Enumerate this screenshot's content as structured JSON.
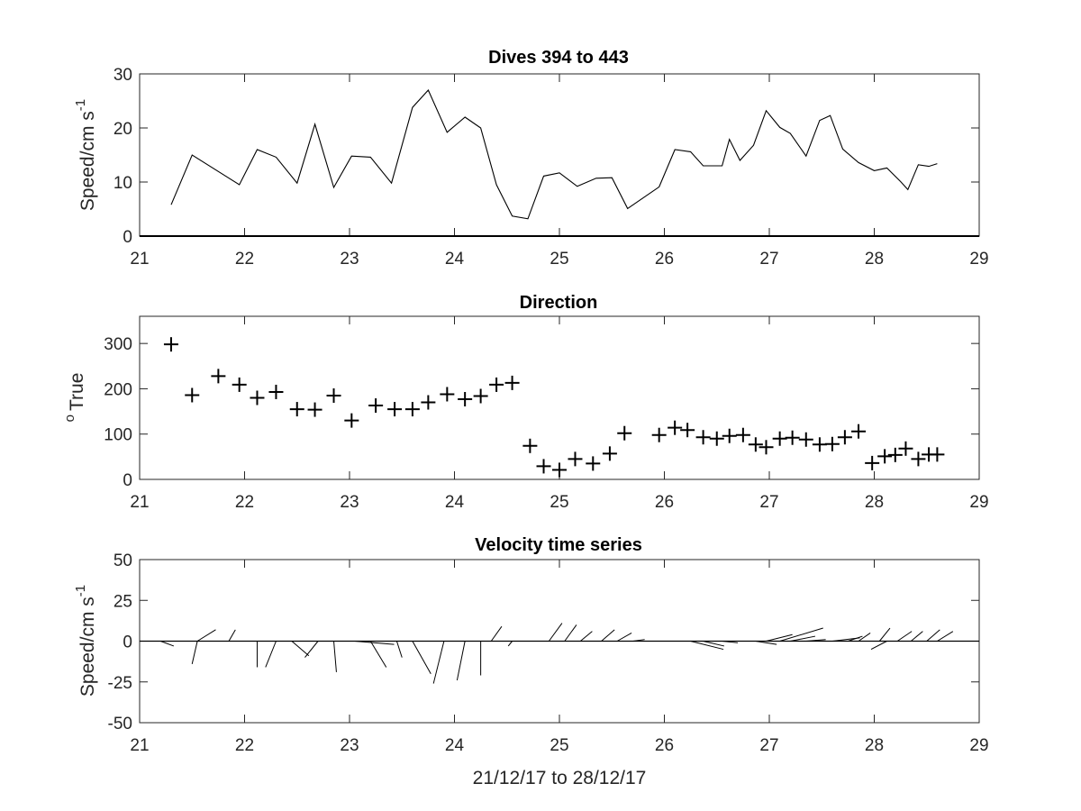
{
  "chart_data": [
    {
      "type": "line",
      "title": "Dives 394 to 443",
      "ylabel": "Speed/cm s",
      "ylabel_superscript": "-1",
      "xlim": [
        21,
        29
      ],
      "ylim": [
        0,
        30
      ],
      "xticks": [
        "21",
        "22",
        "23",
        "24",
        "25",
        "26",
        "27",
        "28",
        "29"
      ],
      "yticks": [
        "0",
        "10",
        "20",
        "30"
      ],
      "grid": false,
      "line_color": "#000000",
      "x": [
        21.3,
        21.5,
        21.95,
        22.12,
        22.3,
        22.5,
        22.67,
        22.85,
        23.02,
        23.2,
        23.4,
        23.6,
        23.75,
        23.93,
        24.1,
        24.25,
        24.4,
        24.55,
        24.7,
        24.85,
        25.0,
        25.17,
        25.35,
        25.5,
        25.65,
        25.95,
        26.1,
        26.25,
        26.37,
        26.55,
        26.62,
        26.72,
        26.85,
        26.97,
        27.1,
        27.2,
        27.35,
        27.48,
        27.58,
        27.7,
        27.85,
        28.0,
        28.12,
        28.25,
        28.32,
        28.42,
        28.52,
        28.6
      ],
      "y": [
        5.8,
        15,
        9.5,
        16,
        14.6,
        9.8,
        20.7,
        9,
        14.8,
        14.6,
        9.8,
        23.8,
        27,
        19.2,
        22,
        20,
        9.5,
        3.7,
        3.2,
        11.1,
        11.7,
        9.2,
        10.7,
        10.8,
        5.1,
        9.1,
        16,
        15.6,
        13,
        13,
        17.9,
        14,
        16.8,
        23.2,
        20.1,
        19,
        14.8,
        21.4,
        22.3,
        16.1,
        13.6,
        12.1,
        12.6,
        10.1,
        8.6,
        13.2,
        12.9,
        13.4
      ]
    },
    {
      "type": "scatter",
      "title": "Direction",
      "ylabel": "True",
      "ylabel_prefix": "o",
      "xlim": [
        21,
        29
      ],
      "ylim": [
        0,
        360
      ],
      "xticks": [
        "21",
        "22",
        "23",
        "24",
        "25",
        "26",
        "27",
        "28",
        "29"
      ],
      "yticks": [
        "0",
        "100",
        "200",
        "300"
      ],
      "grid": false,
      "marker": "+",
      "x": [
        21.3,
        21.5,
        21.75,
        21.95,
        22.12,
        22.3,
        22.5,
        22.67,
        22.85,
        23.02,
        23.25,
        23.43,
        23.6,
        23.75,
        23.93,
        24.1,
        24.25,
        24.4,
        24.55,
        24.72,
        24.85,
        25.0,
        25.15,
        25.32,
        25.48,
        25.62,
        25.95,
        26.1,
        26.22,
        26.37,
        26.5,
        26.62,
        26.75,
        26.87,
        26.97,
        27.1,
        27.22,
        27.35,
        27.48,
        27.6,
        27.72,
        27.85,
        27.98,
        28.1,
        28.2,
        28.3,
        28.42,
        28.52,
        28.6
      ],
      "y": [
        298,
        186,
        228,
        209,
        180,
        193,
        155,
        154,
        185,
        130,
        163,
        155,
        155,
        170,
        188,
        177,
        184,
        209,
        213,
        74,
        29,
        21,
        45,
        35,
        57,
        102,
        98,
        114,
        109,
        93,
        90,
        96,
        98,
        77,
        71,
        90,
        92,
        88,
        77,
        78,
        93,
        106,
        36,
        51,
        54,
        68,
        45,
        55,
        55
      ]
    },
    {
      "type": "line",
      "subtype": "quiver",
      "title": "Velocity time series",
      "ylabel": "Speed/cm s",
      "ylabel_superscript": "-1",
      "xlabel": "21/12/17 to 28/12/17",
      "xlim": [
        21,
        29
      ],
      "ylim": [
        -50,
        50
      ],
      "xticks": [
        "21",
        "22",
        "23",
        "24",
        "25",
        "26",
        "27",
        "28",
        "29"
      ],
      "yticks": [
        "-50",
        "-25",
        "0",
        "25",
        "50"
      ],
      "grid": false,
      "baseline_y": 0,
      "x_days_per_cm_s": 0.0125,
      "vectors": [
        {
          "t": 21.2,
          "u": 10,
          "v": -3
        },
        {
          "t": 21.55,
          "u": -4,
          "v": -14
        },
        {
          "t": 21.55,
          "u": 14,
          "v": 7
        },
        {
          "t": 21.85,
          "u": 5,
          "v": 7
        },
        {
          "t": 22.12,
          "u": 0,
          "v": -16
        },
        {
          "t": 22.3,
          "u": -8,
          "v": -16
        },
        {
          "t": 22.45,
          "u": 13,
          "v": -9
        },
        {
          "t": 22.7,
          "u": -10,
          "v": -10
        },
        {
          "t": 22.85,
          "u": 2,
          "v": -19
        },
        {
          "t": 23.05,
          "u": 30,
          "v": -2
        },
        {
          "t": 23.2,
          "u": 12,
          "v": -16
        },
        {
          "t": 23.45,
          "u": 4,
          "v": -10
        },
        {
          "t": 23.6,
          "u": 14,
          "v": -20
        },
        {
          "t": 23.9,
          "u": -8,
          "v": -26
        },
        {
          "t": 24.1,
          "u": -6,
          "v": -24
        },
        {
          "t": 24.25,
          "u": 0,
          "v": -21
        },
        {
          "t": 24.35,
          "u": 8,
          "v": 9
        },
        {
          "t": 24.55,
          "u": -3,
          "v": -3
        },
        {
          "t": 24.9,
          "u": 10,
          "v": 11
        },
        {
          "t": 25.05,
          "u": 9,
          "v": 10
        },
        {
          "t": 25.2,
          "u": 9,
          "v": 6
        },
        {
          "t": 25.4,
          "u": 10,
          "v": 7
        },
        {
          "t": 25.55,
          "u": 11,
          "v": 5
        },
        {
          "t": 25.7,
          "u": 9,
          "v": 1
        },
        {
          "t": 25.98,
          "u": 9,
          "v": 0
        },
        {
          "t": 26.18,
          "u": 15,
          "v": 0
        },
        {
          "t": 26.25,
          "u": 25,
          "v": -5
        },
        {
          "t": 26.37,
          "u": 16,
          "v": -3
        },
        {
          "t": 26.55,
          "u": 12,
          "v": -1
        },
        {
          "t": 26.72,
          "u": 16,
          "v": 0
        },
        {
          "t": 26.87,
          "u": 16,
          "v": -2
        },
        {
          "t": 26.97,
          "u": 20,
          "v": 4
        },
        {
          "t": 27.1,
          "u": 33,
          "v": 8
        },
        {
          "t": 27.2,
          "u": 19,
          "v": 3
        },
        {
          "t": 27.35,
          "u": 15,
          "v": 1
        },
        {
          "t": 27.5,
          "u": 21,
          "v": 0
        },
        {
          "t": 27.6,
          "u": 21,
          "v": 2
        },
        {
          "t": 27.75,
          "u": 11,
          "v": 3
        },
        {
          "t": 27.85,
          "u": 9,
          "v": 5
        },
        {
          "t": 28.12,
          "u": -12,
          "v": -5
        },
        {
          "t": 28.05,
          "u": 8,
          "v": 8
        },
        {
          "t": 28.22,
          "u": 11,
          "v": 6
        },
        {
          "t": 28.35,
          "u": 9,
          "v": 6
        },
        {
          "t": 28.5,
          "u": 10,
          "v": 7
        },
        {
          "t": 28.6,
          "u": 12,
          "v": 6
        }
      ]
    }
  ]
}
